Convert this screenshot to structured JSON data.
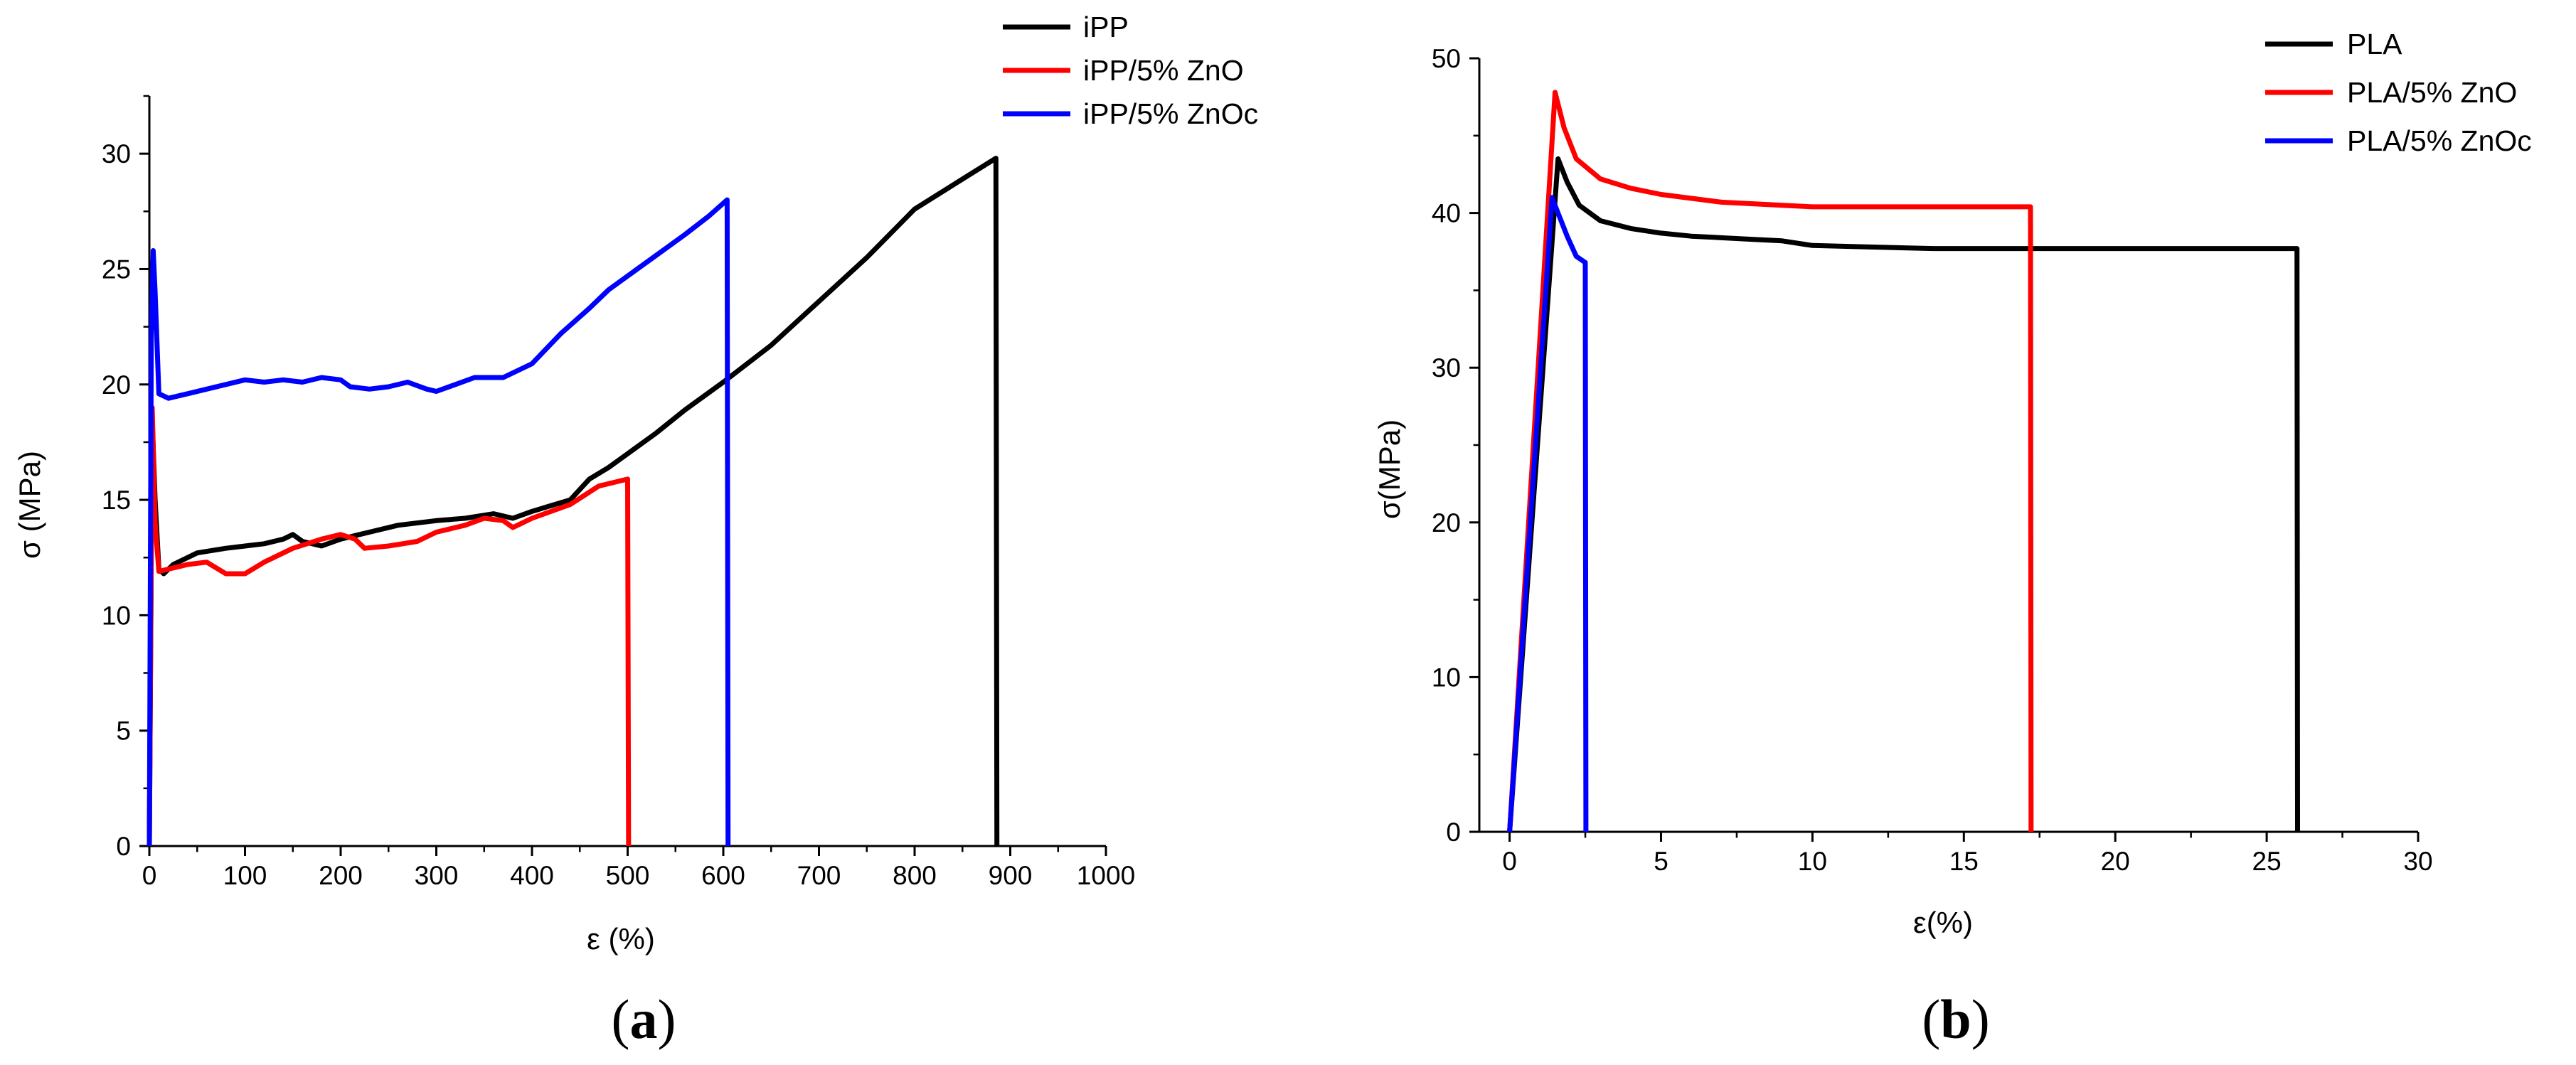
{
  "chart_data": [
    {
      "panel": "a",
      "type": "line",
      "caption_letter": "a",
      "caption_open": "(",
      "caption_close": ")",
      "xlabel": "ε (%)",
      "ylabel": "σ (MPa)",
      "xlim": [
        0,
        1000
      ],
      "ylim": [
        0,
        32.5
      ],
      "xticks": [
        0,
        100,
        200,
        300,
        400,
        500,
        600,
        700,
        800,
        900,
        1000
      ],
      "yticks": [
        0,
        5,
        10,
        15,
        20,
        25,
        30
      ],
      "legend_position": "top-right",
      "series": [
        {
          "name": "iPP",
          "color": "#000000",
          "points": [
            [
              0,
              0
            ],
            [
              3,
              18.5
            ],
            [
              6,
              15
            ],
            [
              10,
              12
            ],
            [
              15,
              11.8
            ],
            [
              25,
              12.2
            ],
            [
              50,
              12.7
            ],
            [
              80,
              12.9
            ],
            [
              100,
              13
            ],
            [
              120,
              13.1
            ],
            [
              140,
              13.3
            ],
            [
              150,
              13.5
            ],
            [
              160,
              13.2
            ],
            [
              180,
              13
            ],
            [
              200,
              13.3
            ],
            [
              230,
              13.6
            ],
            [
              260,
              13.9
            ],
            [
              300,
              14.1
            ],
            [
              330,
              14.2
            ],
            [
              360,
              14.4
            ],
            [
              380,
              14.2
            ],
            [
              400,
              14.5
            ],
            [
              440,
              15
            ],
            [
              460,
              15.9
            ],
            [
              480,
              16.4
            ],
            [
              500,
              17
            ],
            [
              530,
              17.9
            ],
            [
              560,
              18.9
            ],
            [
              600,
              20.1
            ],
            [
              650,
              21.7
            ],
            [
              700,
              23.6
            ],
            [
              750,
              25.5
            ],
            [
              800,
              27.6
            ],
            [
              850,
              28.9
            ],
            [
              885,
              29.8
            ],
            [
              886,
              0
            ]
          ]
        },
        {
          "name": "iPP/5% ZnO",
          "color": "#ff0000",
          "points": [
            [
              0,
              0
            ],
            [
              3,
              19
            ],
            [
              6,
              14
            ],
            [
              10,
              11.9
            ],
            [
              20,
              12
            ],
            [
              40,
              12.2
            ],
            [
              60,
              12.3
            ],
            [
              80,
              11.8
            ],
            [
              100,
              11.8
            ],
            [
              120,
              12.3
            ],
            [
              150,
              12.9
            ],
            [
              180,
              13.3
            ],
            [
              200,
              13.5
            ],
            [
              215,
              13.3
            ],
            [
              225,
              12.9
            ],
            [
              250,
              13
            ],
            [
              280,
              13.2
            ],
            [
              300,
              13.6
            ],
            [
              330,
              13.9
            ],
            [
              350,
              14.2
            ],
            [
              370,
              14.1
            ],
            [
              380,
              13.8
            ],
            [
              400,
              14.2
            ],
            [
              440,
              14.8
            ],
            [
              470,
              15.6
            ],
            [
              500,
              15.9
            ],
            [
              501,
              0
            ]
          ]
        },
        {
          "name": "iPP/5% ZnOc",
          "color": "#0000ff",
          "points": [
            [
              0,
              0
            ],
            [
              2,
              22
            ],
            [
              4,
              25.8
            ],
            [
              6,
              24
            ],
            [
              10,
              19.6
            ],
            [
              20,
              19.4
            ],
            [
              40,
              19.6
            ],
            [
              60,
              19.8
            ],
            [
              80,
              20
            ],
            [
              100,
              20.2
            ],
            [
              120,
              20.1
            ],
            [
              140,
              20.2
            ],
            [
              160,
              20.1
            ],
            [
              180,
              20.3
            ],
            [
              200,
              20.2
            ],
            [
              210,
              19.9
            ],
            [
              230,
              19.8
            ],
            [
              250,
              19.9
            ],
            [
              270,
              20.1
            ],
            [
              290,
              19.8
            ],
            [
              300,
              19.7
            ],
            [
              320,
              20
            ],
            [
              340,
              20.3
            ],
            [
              370,
              20.3
            ],
            [
              400,
              20.9
            ],
            [
              430,
              22.2
            ],
            [
              460,
              23.3
            ],
            [
              480,
              24.1
            ],
            [
              500,
              24.7
            ],
            [
              530,
              25.6
            ],
            [
              560,
              26.5
            ],
            [
              585,
              27.3
            ],
            [
              604,
              28
            ],
            [
              605,
              0
            ]
          ]
        }
      ]
    },
    {
      "panel": "b",
      "type": "line",
      "caption_letter": "b",
      "caption_open": "(",
      "caption_close": ")",
      "xlabel": "ε(%)",
      "ylabel": "σ(MPa)",
      "xlim": [
        -1,
        30
      ],
      "ylim": [
        0,
        50
      ],
      "xticks": [
        0,
        5,
        10,
        15,
        20,
        25,
        30
      ],
      "yticks": [
        0,
        10,
        20,
        30,
        40,
        50
      ],
      "legend_position": "top-right",
      "series": [
        {
          "name": "PLA",
          "color": "#000000",
          "points": [
            [
              0,
              0
            ],
            [
              1.6,
              43.5
            ],
            [
              1.9,
              42
            ],
            [
              2.3,
              40.5
            ],
            [
              3,
              39.5
            ],
            [
              4,
              39
            ],
            [
              5,
              38.7
            ],
            [
              6,
              38.5
            ],
            [
              8,
              38.3
            ],
            [
              9,
              38.2
            ],
            [
              10,
              37.9
            ],
            [
              12,
              37.8
            ],
            [
              14,
              37.7
            ],
            [
              20,
              37.7
            ],
            [
              26,
              37.7
            ],
            [
              26.02,
              0
            ]
          ]
        },
        {
          "name": "PLA/5% ZnO",
          "color": "#ff0000",
          "points": [
            [
              0,
              0
            ],
            [
              1.5,
              47.8
            ],
            [
              1.8,
              45.5
            ],
            [
              2.2,
              43.5
            ],
            [
              3,
              42.2
            ],
            [
              4,
              41.6
            ],
            [
              5,
              41.2
            ],
            [
              7,
              40.7
            ],
            [
              9,
              40.5
            ],
            [
              10,
              40.4
            ],
            [
              13,
              40.4
            ],
            [
              17.2,
              40.4
            ],
            [
              17.22,
              0
            ]
          ]
        },
        {
          "name": "PLA/5% ZnOc",
          "color": "#0000ff",
          "points": [
            [
              0,
              0
            ],
            [
              1.4,
              41
            ],
            [
              1.6,
              40
            ],
            [
              1.9,
              38.5
            ],
            [
              2.2,
              37.2
            ],
            [
              2.5,
              36.8
            ],
            [
              2.52,
              0
            ]
          ]
        }
      ]
    }
  ]
}
